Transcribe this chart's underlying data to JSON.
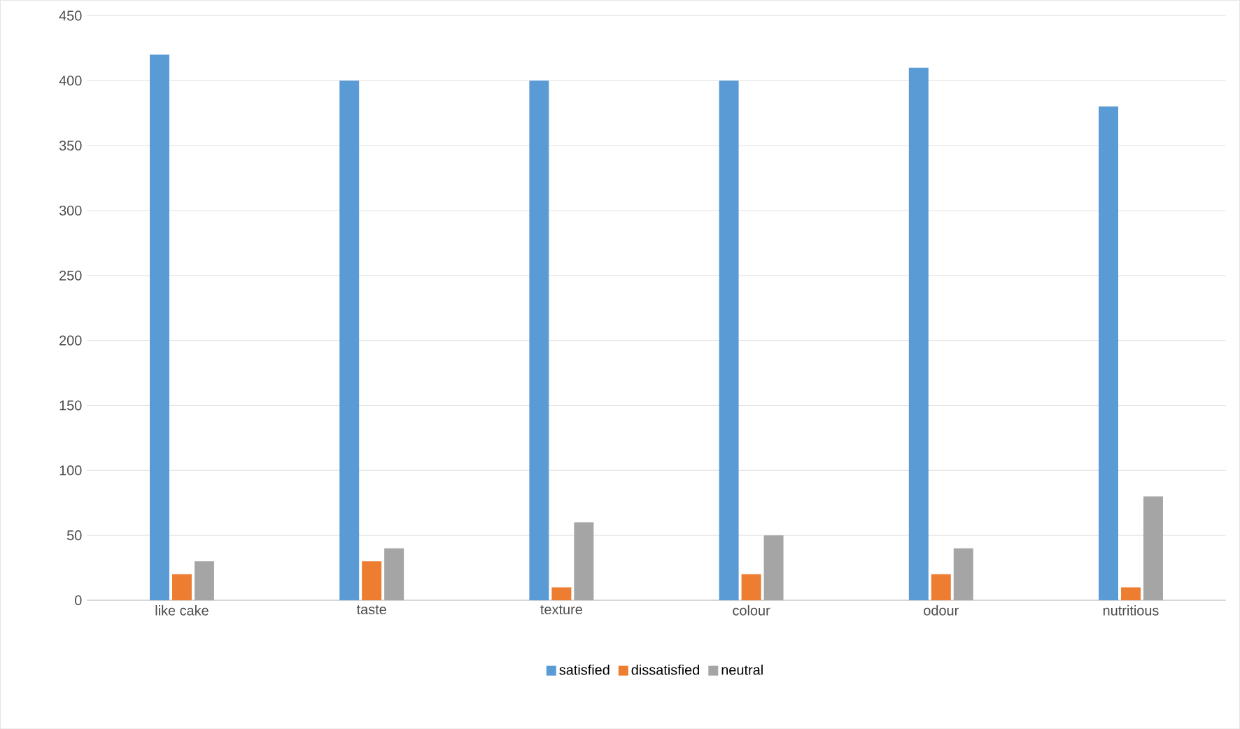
{
  "chart_data": {
    "type": "bar",
    "categories": [
      "like cake",
      "taste",
      "texture",
      "colour",
      "odour",
      "nutritious"
    ],
    "series": [
      {
        "name": "satisfied",
        "color": "#5b9bd5",
        "values": [
          420,
          400,
          400,
          400,
          410,
          380
        ]
      },
      {
        "name": "dissatisfied",
        "color": "#ed7d31",
        "values": [
          20,
          30,
          10,
          20,
          20,
          10
        ]
      },
      {
        "name": "neutral",
        "color": "#a5a5a5",
        "values": [
          30,
          40,
          60,
          50,
          40,
          80
        ]
      }
    ],
    "ylim": [
      0,
      450
    ],
    "yticks": [
      0,
      50,
      100,
      150,
      200,
      250,
      300,
      350,
      400,
      450
    ],
    "grid": "y",
    "legend": "bottom"
  }
}
